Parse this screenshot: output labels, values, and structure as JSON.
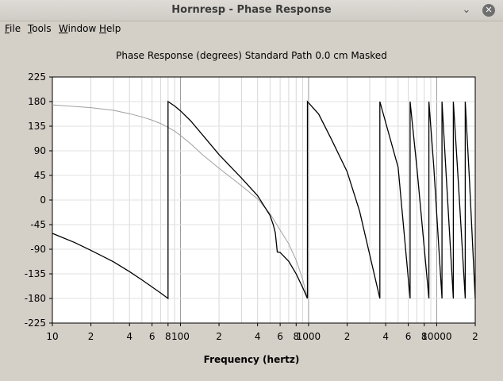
{
  "window": {
    "title": "Hornresp - Phase Response",
    "minimize_glyph": "⌄",
    "close_glyph": "✕"
  },
  "menu": [
    {
      "label": "File",
      "underline": "F",
      "rest": "ile"
    },
    {
      "label": "Tools",
      "underline": "T",
      "rest": "ools"
    },
    {
      "label": "Window",
      "underline": "W",
      "rest": "indow"
    },
    {
      "label": "Help",
      "underline": "H",
      "rest": "elp"
    }
  ],
  "chart_data": {
    "type": "line",
    "title": "Phase Response (degrees)   Standard   Path 0.0 cm   Masked",
    "xlabel": "Frequency (hertz)",
    "ylabel": "",
    "xscale": "log",
    "xlim": [
      10,
      20000
    ],
    "ylim": [
      -225,
      225
    ],
    "yticks": [
      225,
      180,
      135,
      90,
      45,
      0,
      -45,
      -90,
      -135,
      -180,
      -225
    ],
    "xtick_labels": [
      {
        "value": 10,
        "label": "10"
      },
      {
        "value": 20,
        "label": "2"
      },
      {
        "value": 40,
        "label": "4"
      },
      {
        "value": 60,
        "label": "6"
      },
      {
        "value": 80,
        "label": "8"
      },
      {
        "value": 100,
        "label": "100"
      },
      {
        "value": 200,
        "label": "2"
      },
      {
        "value": 400,
        "label": "4"
      },
      {
        "value": 600,
        "label": "6"
      },
      {
        "value": 800,
        "label": "8"
      },
      {
        "value": 1000,
        "label": "1000"
      },
      {
        "value": 2000,
        "label": "2"
      },
      {
        "value": 4000,
        "label": "4"
      },
      {
        "value": 6000,
        "label": "6"
      },
      {
        "value": 8000,
        "label": "8"
      },
      {
        "value": 10000,
        "label": "10000"
      },
      {
        "value": 20000,
        "label": "2"
      }
    ],
    "grid": true,
    "series": [
      {
        "color": "#000000",
        "points": [
          [
            10,
            -61
          ],
          [
            15,
            -78
          ],
          [
            20,
            -92
          ],
          [
            30,
            -113
          ],
          [
            40,
            -131
          ],
          [
            50,
            -146
          ],
          [
            60,
            -159
          ],
          [
            70,
            -170
          ],
          [
            80,
            -180
          ],
          [
            80,
            180
          ],
          [
            90,
            172
          ],
          [
            100,
            163
          ],
          [
            120,
            145
          ],
          [
            150,
            118
          ],
          [
            200,
            83
          ],
          [
            300,
            40
          ],
          [
            400,
            8
          ],
          [
            500,
            -28
          ],
          [
            530,
            -45
          ],
          [
            550,
            -60
          ],
          [
            570,
            -95
          ],
          [
            600,
            -96
          ],
          [
            700,
            -112
          ],
          [
            800,
            -135
          ],
          [
            900,
            -160
          ],
          [
            980,
            -180
          ],
          [
            980,
            180
          ],
          [
            1200,
            157
          ],
          [
            1500,
            112
          ],
          [
            2000,
            52
          ],
          [
            2500,
            -20
          ],
          [
            3000,
            -100
          ],
          [
            3600,
            -180
          ],
          [
            3600,
            180
          ],
          [
            5000,
            60
          ],
          [
            6200,
            -180
          ],
          [
            6200,
            180
          ],
          [
            7000,
            60
          ],
          [
            8700,
            -180
          ],
          [
            8700,
            180
          ],
          [
            9500,
            60
          ],
          [
            11000,
            -180
          ],
          [
            11000,
            180
          ],
          [
            11900,
            40
          ],
          [
            13500,
            -180
          ],
          [
            13500,
            180
          ],
          [
            14700,
            40
          ],
          [
            16700,
            -180
          ],
          [
            16700,
            180
          ],
          [
            18000,
            40
          ],
          [
            20000,
            -180
          ]
        ]
      },
      {
        "color": "#a0a0a0",
        "points": [
          [
            10,
            174
          ],
          [
            20,
            169
          ],
          [
            30,
            164
          ],
          [
            40,
            158
          ],
          [
            50,
            152
          ],
          [
            60,
            146
          ],
          [
            70,
            140
          ],
          [
            80,
            133
          ],
          [
            90,
            126
          ],
          [
            100,
            118
          ],
          [
            120,
            103
          ],
          [
            150,
            82
          ],
          [
            200,
            58
          ],
          [
            300,
            26
          ],
          [
            400,
            2
          ],
          [
            500,
            -25
          ],
          [
            600,
            -55
          ],
          [
            700,
            -80
          ],
          [
            800,
            -110
          ],
          [
            900,
            -145
          ],
          [
            980,
            -180
          ]
        ]
      }
    ]
  }
}
